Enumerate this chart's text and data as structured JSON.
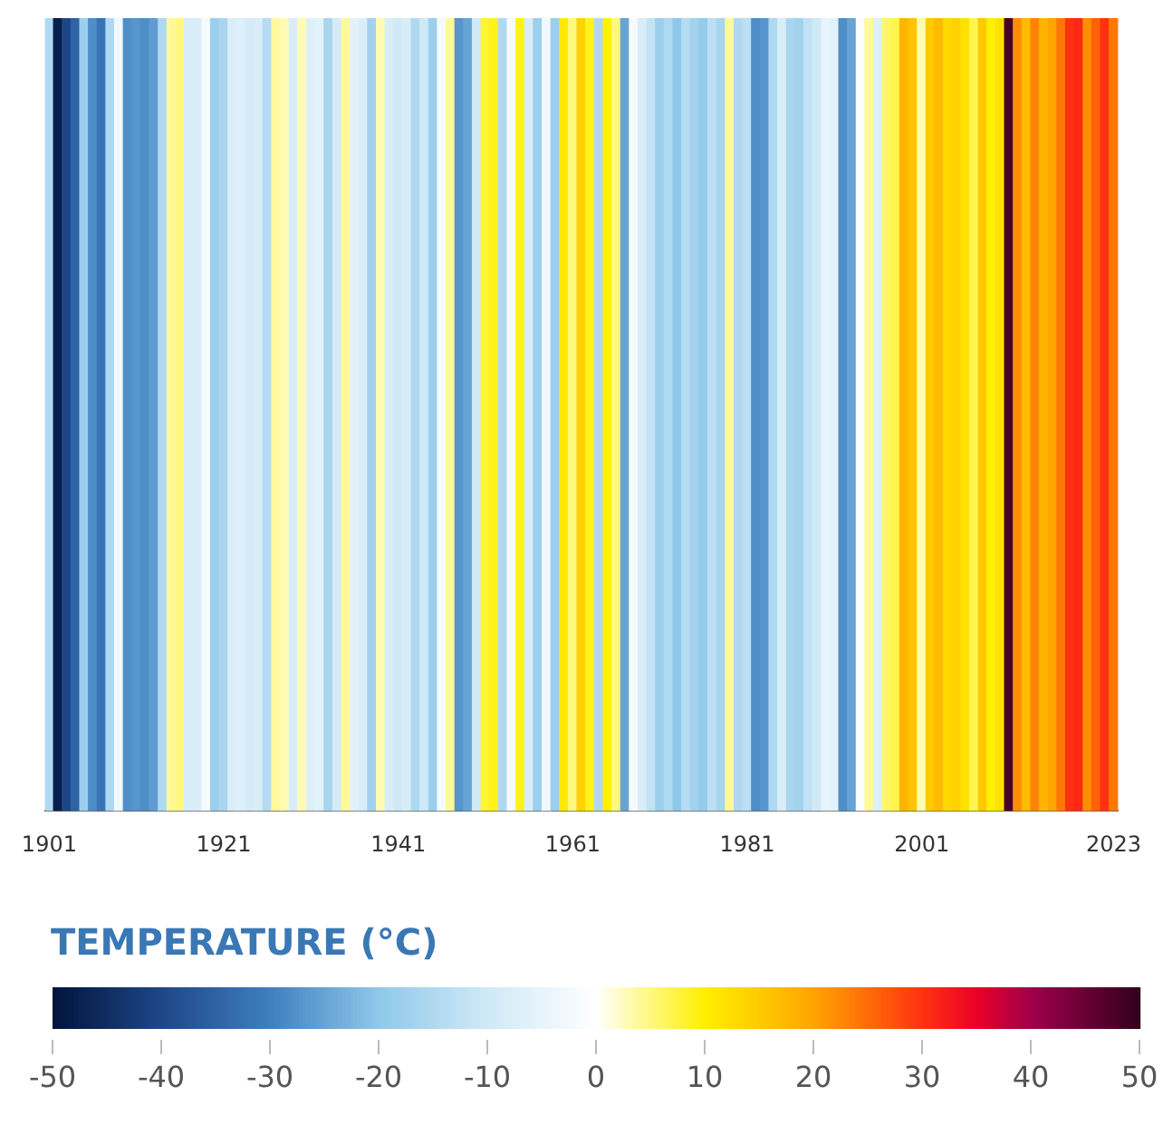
{
  "chart_data": {
    "type": "heatmap",
    "clabel": "TEMPERATURE (°C)",
    "categories": [
      "1901",
      null,
      null,
      null,
      null,
      null,
      null,
      null,
      null,
      null,
      null,
      null,
      null,
      null,
      null,
      null,
      null,
      null,
      null,
      null,
      "1921",
      null,
      null,
      null,
      null,
      null,
      null,
      null,
      null,
      null,
      null,
      null,
      null,
      null,
      null,
      null,
      null,
      null,
      null,
      null,
      "1941",
      null,
      null,
      null,
      null,
      null,
      null,
      null,
      null,
      null,
      null,
      null,
      null,
      null,
      null,
      null,
      null,
      null,
      null,
      null,
      "1961",
      null,
      null,
      null,
      null,
      null,
      null,
      null,
      null,
      null,
      null,
      null,
      null,
      null,
      null,
      null,
      null,
      null,
      null,
      null,
      "1981",
      null,
      null,
      null,
      null,
      null,
      null,
      null,
      null,
      null,
      null,
      null,
      null,
      null,
      null,
      null,
      null,
      null,
      null,
      null,
      "2001",
      null,
      null,
      null,
      null,
      null,
      null,
      null,
      null,
      null,
      null,
      null,
      null,
      null,
      null,
      null,
      null,
      null,
      null,
      null,
      null,
      null,
      "2023"
    ],
    "y_categories": [
      null
    ],
    "cells": [
      [
        -15,
        -48,
        -40,
        -35,
        -18,
        -28,
        -32,
        -15,
        -3,
        -28,
        -27,
        -28,
        -26,
        -15,
        4,
        5,
        -8,
        -8,
        -2,
        -18,
        -16,
        -8,
        -7,
        -9,
        -8,
        -14,
        4,
        3,
        -8,
        3,
        -7,
        -6,
        -16,
        -9,
        4,
        -6,
        -8,
        -17,
        3,
        -8,
        -10,
        -8,
        -15,
        -10,
        -18,
        -2,
        4,
        -27,
        -25,
        -10,
        8,
        9,
        -15,
        -2,
        9,
        -8,
        -18,
        -3,
        -18,
        11,
        5,
        14,
        9,
        -15,
        10,
        5,
        -25,
        -2,
        -8,
        -12,
        -18,
        -15,
        -20,
        -14,
        -17,
        -19,
        -13,
        -16,
        4,
        -15,
        -13,
        -28,
        -27,
        -15,
        -8,
        -16,
        -17,
        -12,
        -10,
        -5,
        -6,
        -28,
        -25,
        -1,
        4,
        -7,
        6,
        7,
        18,
        16,
        3,
        15,
        17,
        13,
        14,
        12,
        7,
        15,
        10,
        12,
        48,
        22,
        17,
        23,
        18,
        20,
        24,
        30,
        31,
        22,
        26,
        30,
        24
      ]
    ],
    "clim": [
      -50,
      50
    ],
    "cticks": [
      -50,
      -40,
      -30,
      -20,
      -10,
      0,
      10,
      20,
      30,
      40,
      50
    ]
  }
}
